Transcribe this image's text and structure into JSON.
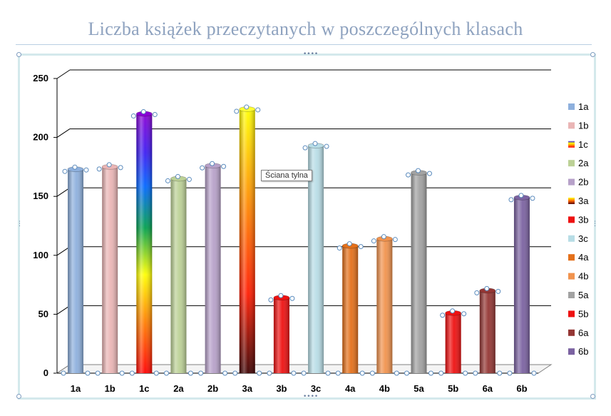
{
  "chart_data": {
    "type": "bar",
    "title": "Liczba książek przeczytanych  w poszczególnych  klasach",
    "categories": [
      "1a",
      "1b",
      "1c",
      "2a",
      "2b",
      "3a",
      "3b",
      "3c",
      "4a",
      "4b",
      "5a",
      "5b",
      "6a",
      "6b"
    ],
    "values": [
      173,
      175,
      220,
      165,
      176,
      224,
      64,
      193,
      108,
      114,
      170,
      51,
      70,
      149
    ],
    "ylim": [
      0,
      250
    ],
    "yticks": [
      "0",
      "50",
      "100",
      "150",
      "200",
      "250"
    ],
    "grid": true,
    "legend_position": "right",
    "legend": [
      "1a",
      "1b",
      "1c",
      "2a",
      "2b",
      "3a",
      "3b",
      "3c",
      "4a",
      "4b",
      "5a",
      "5b",
      "6a",
      "6b"
    ],
    "colors": [
      "#8eb0dd",
      "#eab5b5",
      "rainbow",
      "#bcd196",
      "#b7a1c9",
      "fire",
      "#ee1111",
      "#b8dde6",
      "#e4701a",
      "#f1934e",
      "#a2a2a2",
      "#ee1111",
      "#943634",
      "#7b62a1"
    ]
  },
  "tooltip": "Ściana tylna"
}
